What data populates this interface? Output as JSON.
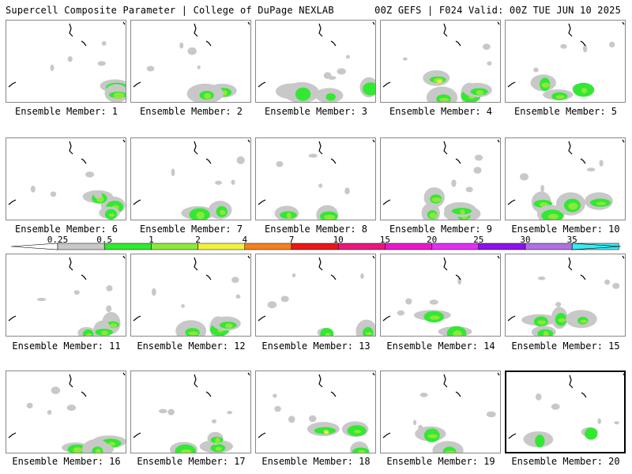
{
  "header": {
    "title_left": "Supercell Composite Parameter | College of DuPage NEXLAB",
    "title_right": "00Z GEFS | F024 Valid: 00Z TUE JUN 10 2025"
  },
  "colors": {
    "grey": "#c8c8c8",
    "green": "#33e833",
    "lightgreen": "#8ce83c",
    "yellow": "#f0f040",
    "orange": "#f08020",
    "red": "#e81818",
    "magenta1": "#e8187c",
    "magenta2": "#e818c8",
    "magenta3": "#e030f0",
    "purple1": "#8a14e8",
    "purple2": "#b070e0",
    "cyan": "#40e8f0",
    "selected_border": "#000000"
  },
  "color_scale": {
    "labels": [
      "0.25",
      "0.5",
      "1",
      "2",
      "4",
      "7",
      "10",
      "15",
      "20",
      "25",
      "30",
      "35"
    ],
    "bins": [
      "#c8c8c8",
      "#33e833",
      "#8ce83c",
      "#f0f040",
      "#f08020",
      "#e81818",
      "#e8187c",
      "#e818c8",
      "#e030f0",
      "#8a14e8",
      "#b070e0",
      "#40e8f0"
    ]
  },
  "members": [
    {
      "label": "Ensemble Member: 1",
      "max": "lightgreen"
    },
    {
      "label": "Ensemble Member: 2",
      "max": "lightgreen"
    },
    {
      "label": "Ensemble Member: 3",
      "max": "green"
    },
    {
      "label": "Ensemble Member: 4",
      "max": "yellow"
    },
    {
      "label": "Ensemble Member: 5",
      "max": "lightgreen"
    },
    {
      "label": "Ensemble Member: 6",
      "max": "lightgreen"
    },
    {
      "label": "Ensemble Member: 7",
      "max": "lightgreen"
    },
    {
      "label": "Ensemble Member: 8",
      "max": "lightgreen"
    },
    {
      "label": "Ensemble Member: 9",
      "max": "lightgreen"
    },
    {
      "label": "Ensemble Member: 10",
      "max": "lightgreen"
    },
    {
      "label": "Ensemble Member: 11",
      "max": "lightgreen"
    },
    {
      "label": "Ensemble Member: 12",
      "max": "lightgreen"
    },
    {
      "label": "Ensemble Member: 13",
      "max": "lightgreen"
    },
    {
      "label": "Ensemble Member: 14",
      "max": "lightgreen"
    },
    {
      "label": "Ensemble Member: 15",
      "max": "lightgreen"
    },
    {
      "label": "Ensemble Member: 16",
      "max": "lightgreen"
    },
    {
      "label": "Ensemble Member: 17",
      "max": "lightgreen"
    },
    {
      "label": "Ensemble Member: 18",
      "max": "yellow"
    },
    {
      "label": "Ensemble Member: 19",
      "max": "lightgreen"
    },
    {
      "label": "Ensemble Member: 20",
      "max": "green",
      "selected": true
    }
  ]
}
